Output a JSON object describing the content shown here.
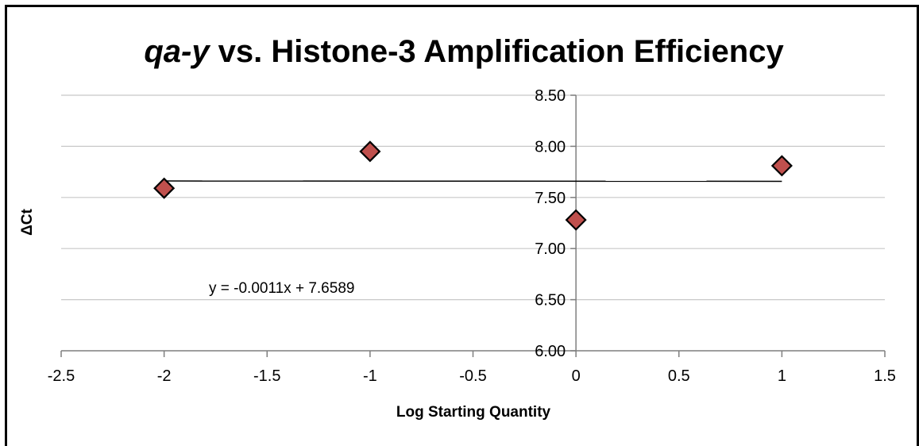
{
  "chart_data": {
    "type": "scatter",
    "title_italic": "qa-y",
    "title_rest": " vs. Histone-3 Amplification Efficiency",
    "xlabel": "Log Starting Quantity",
    "ylabel": "ΔCt",
    "xlim": [
      -2.5,
      1.5
    ],
    "ylim": [
      6.0,
      8.5
    ],
    "x_ticks": [
      -2.5,
      -2,
      -1.5,
      -1,
      -0.5,
      0,
      0.5,
      1,
      1.5
    ],
    "x_tick_labels": [
      "-2.5",
      "-2",
      "-1.5",
      "-1",
      "-0.5",
      "0",
      "0.5",
      "1",
      "1.5"
    ],
    "y_ticks": [
      6.0,
      6.5,
      7.0,
      7.5,
      8.0,
      8.5
    ],
    "y_tick_labels": [
      "6.00",
      "6.50",
      "7.00",
      "7.50",
      "8.00",
      "8.50"
    ],
    "grid": "horizontal",
    "series": [
      {
        "x": [
          -2,
          -1,
          0,
          1
        ],
        "y": [
          7.59,
          7.95,
          7.28,
          7.81
        ],
        "marker": "diamond",
        "color": "#c0504d"
      }
    ],
    "trendline": {
      "slope": -0.0011,
      "intercept": 7.6589,
      "x_range": [
        -2,
        1
      ],
      "equation": "y = -0.0011x + 7.6589"
    }
  }
}
